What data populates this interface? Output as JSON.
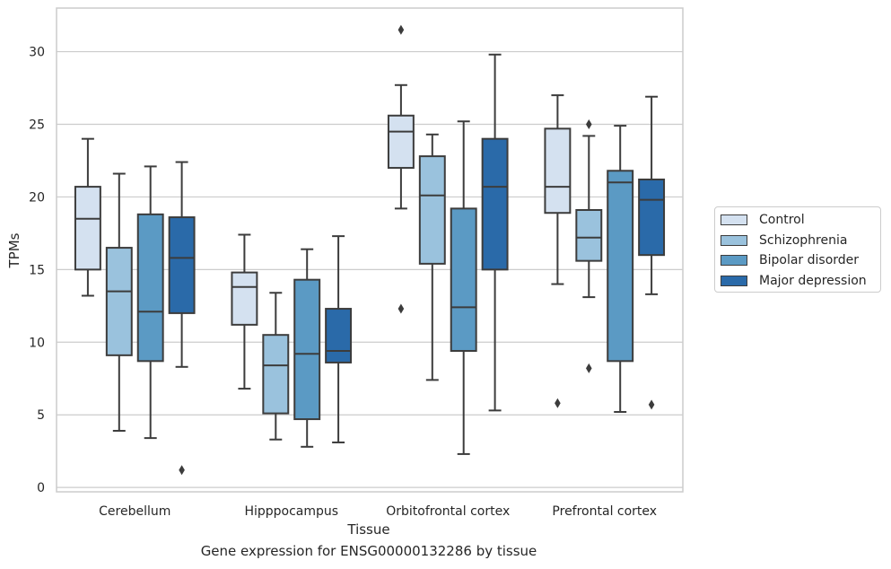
{
  "chart_data": {
    "type": "box",
    "title": "",
    "caption": "Gene expression for ENSG00000132286 by tissue",
    "xlabel": "Tissue",
    "ylabel": "TPMs",
    "ylim": [
      -0.3,
      33
    ],
    "yticks": [
      0,
      5,
      10,
      15,
      20,
      25,
      30
    ],
    "grid": "horizontal",
    "legend_position": "right-center",
    "categories": [
      "Cerebellum",
      "Hipppocampus",
      "Orbitofrontal cortex",
      "Prefrontal cortex"
    ],
    "series": [
      {
        "name": "Control",
        "color": "#d4e1f0",
        "boxes": [
          {
            "whislo": 13.2,
            "q1": 15.0,
            "med": 18.5,
            "q3": 20.7,
            "whishi": 24.0,
            "fliers": []
          },
          {
            "whislo": 6.8,
            "q1": 11.2,
            "med": 13.8,
            "q3": 14.8,
            "whishi": 17.4,
            "fliers": []
          },
          {
            "whislo": 19.2,
            "q1": 22.0,
            "med": 24.5,
            "q3": 25.6,
            "whishi": 27.7,
            "fliers": [
              12.3,
              31.5
            ]
          },
          {
            "whislo": 14.0,
            "q1": 18.9,
            "med": 20.7,
            "q3": 24.7,
            "whishi": 27.0,
            "fliers": [
              5.8
            ]
          }
        ]
      },
      {
        "name": "Schizophrenia",
        "color": "#9ac2dd",
        "boxes": [
          {
            "whislo": 3.9,
            "q1": 9.1,
            "med": 13.5,
            "q3": 16.5,
            "whishi": 21.6,
            "fliers": []
          },
          {
            "whislo": 3.3,
            "q1": 5.1,
            "med": 8.4,
            "q3": 10.5,
            "whishi": 13.4,
            "fliers": []
          },
          {
            "whislo": 7.4,
            "q1": 15.4,
            "med": 20.1,
            "q3": 22.8,
            "whishi": 24.3,
            "fliers": []
          },
          {
            "whislo": 13.1,
            "q1": 15.6,
            "med": 17.2,
            "q3": 19.1,
            "whishi": 24.2,
            "fliers": [
              8.2,
              25.0
            ]
          }
        ]
      },
      {
        "name": "Bipolar disorder",
        "color": "#5b9ac4",
        "boxes": [
          {
            "whislo": 3.4,
            "q1": 8.7,
            "med": 12.1,
            "q3": 18.8,
            "whishi": 22.1,
            "fliers": []
          },
          {
            "whislo": 2.8,
            "q1": 4.7,
            "med": 9.2,
            "q3": 14.3,
            "whishi": 16.4,
            "fliers": []
          },
          {
            "whislo": 2.3,
            "q1": 9.4,
            "med": 12.4,
            "q3": 19.2,
            "whishi": 25.2,
            "fliers": []
          },
          {
            "whislo": 5.2,
            "q1": 8.7,
            "med": 21.0,
            "q3": 21.8,
            "whishi": 24.9,
            "fliers": []
          }
        ]
      },
      {
        "name": "Major depression",
        "color": "#2a6aa9",
        "boxes": [
          {
            "whislo": 8.3,
            "q1": 12.0,
            "med": 15.8,
            "q3": 18.6,
            "whishi": 22.4,
            "fliers": [
              1.2
            ]
          },
          {
            "whislo": 3.1,
            "q1": 8.6,
            "med": 9.4,
            "q3": 12.3,
            "whishi": 17.3,
            "fliers": []
          },
          {
            "whislo": 5.3,
            "q1": 15.0,
            "med": 20.7,
            "q3": 24.0,
            "whishi": 29.8,
            "fliers": []
          },
          {
            "whislo": 13.3,
            "q1": 16.0,
            "med": 19.8,
            "q3": 21.2,
            "whishi": 26.9,
            "fliers": [
              5.7
            ]
          }
        ]
      }
    ]
  }
}
